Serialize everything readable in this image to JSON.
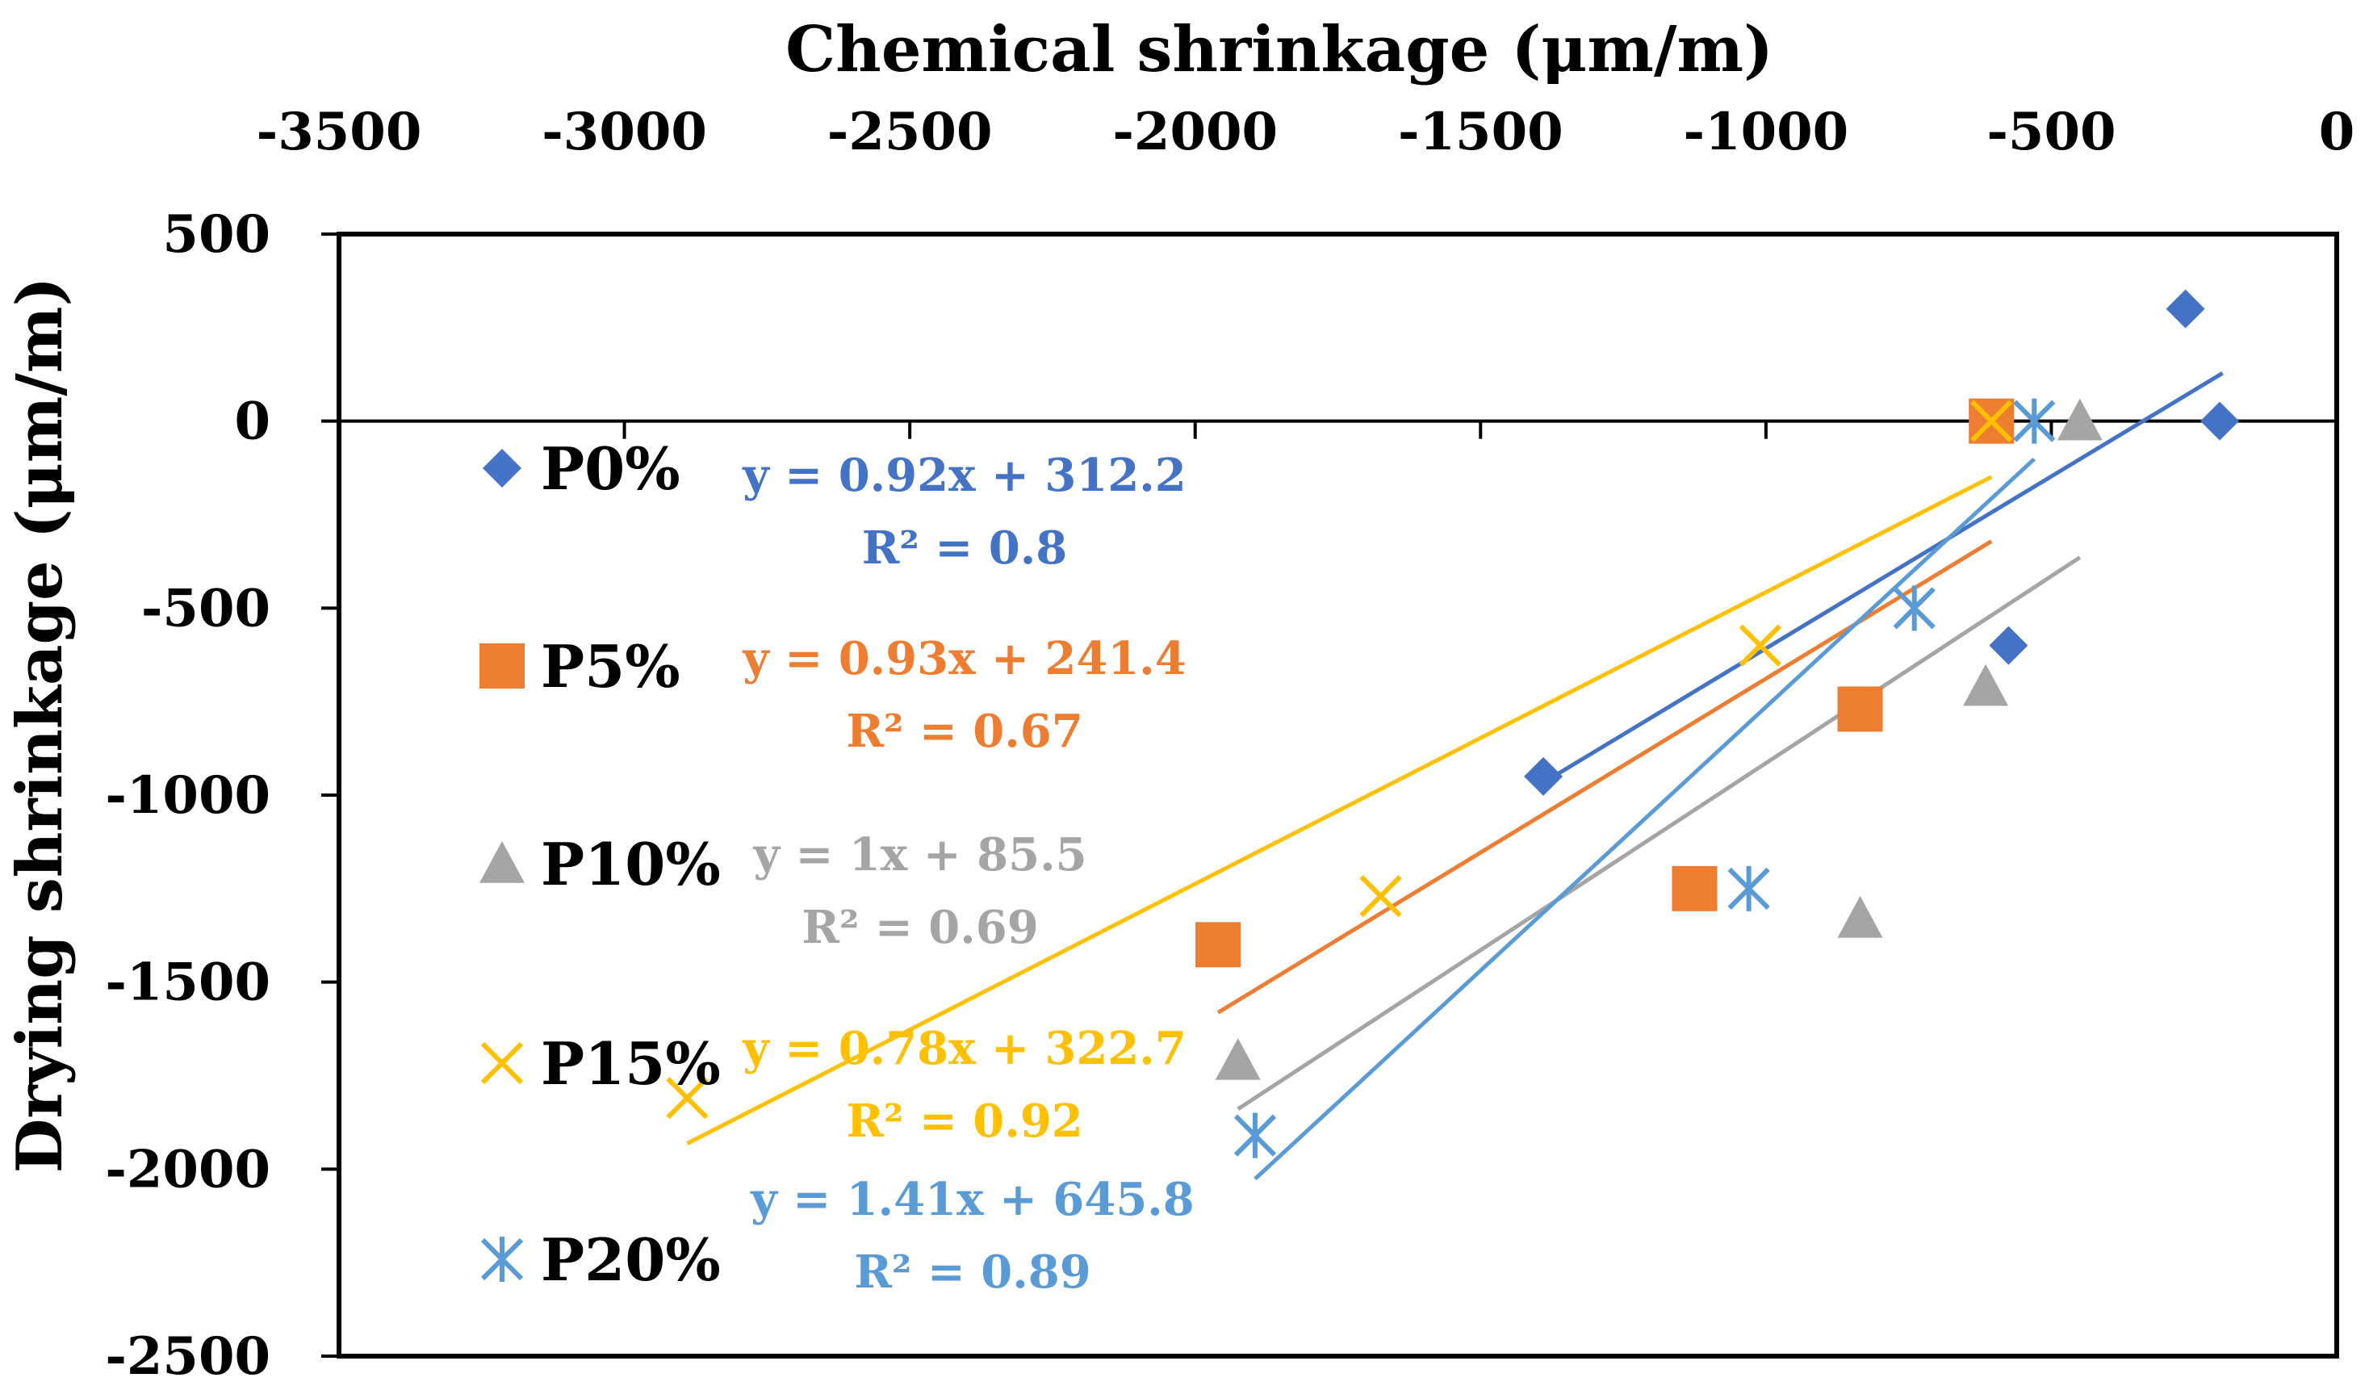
{
  "chart_data": {
    "type": "scatter",
    "title": "",
    "xlabel": "Chemical shrinkage (μm/m)",
    "ylabel": "Drying shrinkage (μm/m)",
    "xlim": [
      -3500,
      0
    ],
    "ylim": [
      -2500,
      500
    ],
    "x_ticks": [
      -3500,
      -3000,
      -2500,
      -2000,
      -1500,
      -1000,
      -500,
      0
    ],
    "y_ticks": [
      500,
      0,
      -500,
      -1000,
      -1500,
      -2000,
      -2500
    ],
    "x_tick_labels": [
      "-3500",
      "-3000",
      "-2500",
      "-2000",
      "-1500",
      "-1000",
      "-500",
      "0"
    ],
    "y_tick_labels": [
      "500",
      "0",
      "-500",
      "-1000",
      "-1500",
      "-2000",
      "-2500"
    ],
    "x_axis_position": "top",
    "legend_position": "left",
    "series": [
      {
        "name": "P0%",
        "marker": "diamond",
        "color": "#4472C4",
        "points": [
          [
            -1390,
            -950
          ],
          [
            -265,
            300
          ],
          [
            -205,
            0
          ],
          [
            -575,
            -600
          ]
        ],
        "trendline": {
          "slope": 0.92,
          "intercept": 312.2,
          "x_range": [
            -1400,
            -200
          ]
        },
        "equation": "y = 0.92x + 312.2",
        "r2": "R² = 0.8"
      },
      {
        "name": "P5%",
        "marker": "square",
        "color": "#ED7D31",
        "points": [
          [
            -1960,
            -1400
          ],
          [
            -1125,
            -1250
          ],
          [
            -835,
            -770
          ],
          [
            -605,
            0
          ]
        ],
        "trendline": {
          "slope": 0.93,
          "intercept": 241.4,
          "x_range": [
            -1960,
            -605
          ]
        },
        "equation": "y = 0.93x + 241.4",
        "r2": "R² = 0.67"
      },
      {
        "name": "P10%",
        "marker": "triangle",
        "color": "#A5A5A5",
        "points": [
          [
            -1925,
            -1710
          ],
          [
            -835,
            -1330
          ],
          [
            -615,
            -710
          ],
          [
            -450,
            0
          ]
        ],
        "trendline": {
          "slope": 1.0,
          "intercept": 85.5,
          "x_range": [
            -1925,
            -450
          ]
        },
        "equation": "y = 1x + 85.5",
        "r2": "R² = 0.69"
      },
      {
        "name": "P15%",
        "marker": "x",
        "color": "#FFC000",
        "points": [
          [
            -2890,
            -1810
          ],
          [
            -1675,
            -1270
          ],
          [
            -1010,
            -600
          ],
          [
            -605,
            0
          ]
        ],
        "trendline": {
          "slope": 0.78,
          "intercept": 322.7,
          "x_range": [
            -2890,
            -605
          ]
        },
        "equation": "y = 0.78x + 322.7",
        "r2": "R² = 0.92"
      },
      {
        "name": "P20%",
        "marker": "asterisk",
        "color": "#5B9BD5",
        "points": [
          [
            -1895,
            -1910
          ],
          [
            -1030,
            -1250
          ],
          [
            -740,
            -500
          ],
          [
            -530,
            0
          ]
        ],
        "trendline": {
          "slope": 1.41,
          "intercept": 645.8,
          "x_range": [
            -1895,
            -530
          ]
        },
        "equation": "y = 1.41x + 645.8",
        "r2": "R² = 0.89"
      }
    ]
  }
}
